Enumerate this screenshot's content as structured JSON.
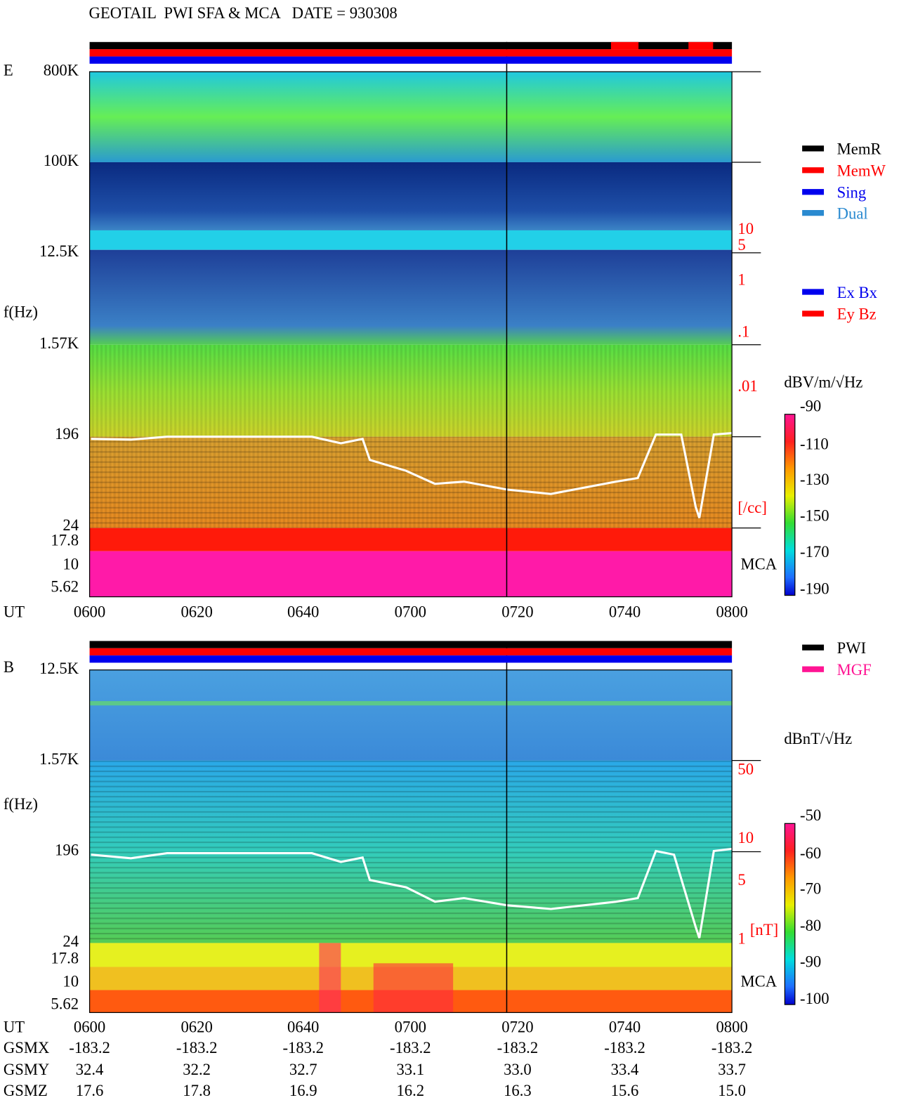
{
  "header": {
    "title": "GEOTAIL  PWI SFA & MCA   DATE = 930308"
  },
  "panel_e": {
    "label": "E",
    "y_axis_title": "f(Hz)",
    "y_labels": [
      "800K",
      "100K",
      "12.5K",
      "1.57K",
      "196",
      "24",
      "17.8",
      "10",
      "5.62"
    ],
    "density_labels": [
      "10",
      "5",
      "1",
      ".1",
      ".01",
      "[/cc]"
    ],
    "mca": "MCA",
    "time_label": "UT",
    "times": [
      "0600",
      "0620",
      "0640",
      "0700",
      "0720",
      "0740",
      "0800"
    ],
    "legend_mode": [
      "MemR",
      "MemW",
      "Sing",
      "Dual"
    ],
    "legend_component": [
      "Ex Bx",
      "Ey Bz"
    ],
    "colorbar_unit": "dBV/m/√Hz",
    "colorbar_labels": [
      "-90",
      "-110",
      "-130",
      "-150",
      "-170",
      "-190"
    ]
  },
  "panel_b": {
    "label": "B",
    "y_axis_title": "f(Hz)",
    "y_labels": [
      "12.5K",
      "1.57K",
      "196",
      "24",
      "17.8",
      "10",
      "5.62"
    ],
    "field_labels": [
      "50",
      "10",
      "5",
      "1",
      "[nT]"
    ],
    "mca": "MCA",
    "time_label": "UT",
    "times": [
      "0600",
      "0620",
      "0640",
      "0700",
      "0720",
      "0740",
      "0800"
    ],
    "legend_source": [
      "PWI",
      "MGF"
    ],
    "colorbar_unit": "dBnT/√Hz",
    "colorbar_labels": [
      "-50",
      "-60",
      "-70",
      "-80",
      "-90",
      "-100"
    ]
  },
  "orbit": {
    "rows": [
      {
        "label": "GSMX",
        "values": [
          "-183.2",
          "-183.2",
          "-183.2",
          "-183.2",
          "-183.2",
          "-183.2",
          "-183.2"
        ]
      },
      {
        "label": "GSMY",
        "values": [
          "32.4",
          "32.2",
          "32.7",
          "33.1",
          "33.0",
          "33.4",
          "33.7"
        ]
      },
      {
        "label": "GSMZ",
        "values": [
          "17.6",
          "17.8",
          "16.9",
          "16.2",
          "16.3",
          "15.6",
          "15.0"
        ]
      }
    ]
  }
}
